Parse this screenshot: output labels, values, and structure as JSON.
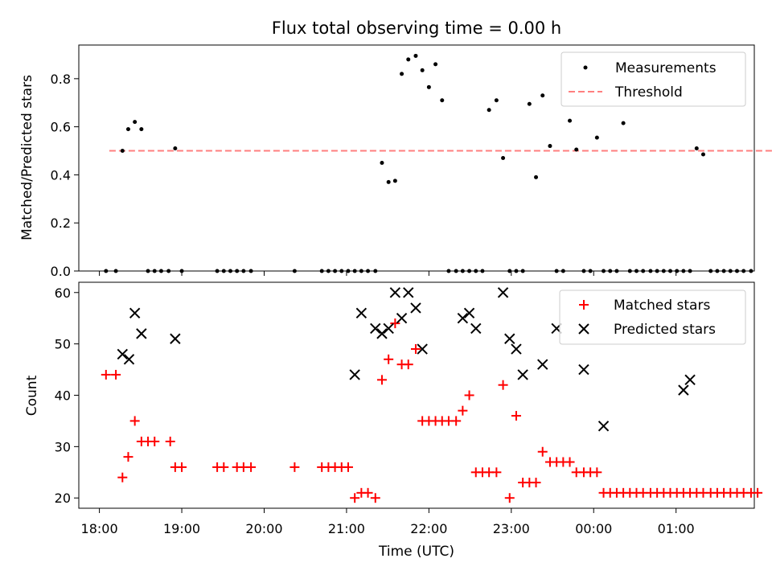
{
  "title": "Flux total observing time = 0.00 h",
  "xlabel": "Time (UTC)",
  "xticks": [
    {
      "t": 18.0,
      "label": "18:00"
    },
    {
      "t": 19.0,
      "label": "19:00"
    },
    {
      "t": 20.0,
      "label": "20:00"
    },
    {
      "t": 21.0,
      "label": "21:00"
    },
    {
      "t": 22.0,
      "label": "22:00"
    },
    {
      "t": 23.0,
      "label": "23:00"
    },
    {
      "t": 24.0,
      "label": "00:00"
    },
    {
      "t": 25.0,
      "label": "01:00"
    }
  ],
  "chart_data": [
    {
      "type": "scatter",
      "ylabel": "Matched/Predicted stars",
      "xlim": [
        "17:45",
        "25:57"
      ],
      "ylim": [
        0,
        0.94
      ],
      "yticks": [
        0.0,
        0.2,
        0.4,
        0.6,
        0.8
      ],
      "legend_position": "top-right",
      "threshold": {
        "name": "Threshold",
        "y": 0.5,
        "x_range": [
          18.12,
          26.52
        ],
        "color": "#ff7f7f"
      },
      "series": [
        {
          "name": "Measurements",
          "color": "#000000",
          "x": [
            18.08,
            18.2,
            18.28,
            18.35,
            18.43,
            18.51,
            18.59,
            18.67,
            18.75,
            18.84,
            18.92,
            19.0,
            19.43,
            19.51,
            19.59,
            19.67,
            19.75,
            19.84,
            20.37,
            20.7,
            20.78,
            20.86,
            20.94,
            21.02,
            21.1,
            21.18,
            21.26,
            21.35,
            21.43,
            21.51,
            21.59,
            21.67,
            21.75,
            21.84,
            21.92,
            22.0,
            22.08,
            22.16,
            22.24,
            22.33,
            22.41,
            22.49,
            22.57,
            22.65,
            22.73,
            22.82,
            22.9,
            22.98,
            23.06,
            23.14,
            23.22,
            23.3,
            23.38,
            23.47,
            23.55,
            23.63,
            23.71,
            23.79,
            23.88,
            23.96,
            24.04,
            24.12,
            24.2,
            24.28,
            24.36,
            24.44,
            24.52,
            24.6,
            24.69,
            24.77,
            24.85,
            24.93,
            25.01,
            25.09,
            25.17,
            25.25,
            25.33,
            25.42,
            25.5,
            25.58,
            25.66,
            25.74,
            25.82,
            25.91
          ],
          "y": [
            0,
            0,
            0.5,
            0.59,
            0.62,
            0.59,
            0,
            0,
            0,
            0,
            0.51,
            0,
            0,
            0,
            0,
            0,
            0,
            0,
            0,
            0,
            0,
            0,
            0,
            0,
            0,
            0,
            0,
            0,
            0.45,
            0.37,
            0.375,
            0.82,
            0.88,
            0.895,
            0.835,
            0.765,
            0.86,
            0.71,
            0,
            0,
            0,
            0,
            0,
            0,
            0.67,
            0.71,
            0.47,
            0,
            0,
            0,
            0.695,
            0.39,
            0.73,
            0.52,
            0,
            0,
            0.625,
            0.505,
            0,
            0,
            0.555,
            0,
            0,
            0,
            0.615,
            0,
            0,
            0,
            0,
            0,
            0,
            0,
            0,
            0,
            0,
            0.51,
            0.485,
            0,
            0,
            0,
            0,
            0,
            0,
            0
          ]
        }
      ]
    },
    {
      "type": "scatter",
      "ylabel": "Count",
      "ylim": [
        18,
        62
      ],
      "yticks": [
        20,
        30,
        40,
        50,
        60
      ],
      "legend_position": "top-right",
      "series": [
        {
          "name": "Matched stars",
          "marker": "plus",
          "color": "#ff0000",
          "x": [
            18.08,
            18.2,
            18.28,
            18.35,
            18.43,
            18.51,
            18.59,
            18.67,
            18.86,
            18.92,
            19.0,
            19.43,
            19.51,
            19.67,
            19.75,
            19.84,
            20.37,
            20.7,
            20.78,
            20.86,
            20.94,
            21.02,
            21.1,
            21.18,
            21.26,
            21.35,
            21.43,
            21.51,
            21.59,
            21.67,
            21.75,
            21.84,
            21.92,
            22.0,
            22.08,
            22.16,
            22.24,
            22.33,
            22.41,
            22.49,
            22.57,
            22.65,
            22.73,
            22.82,
            22.9,
            22.98,
            23.06,
            23.14,
            23.22,
            23.3,
            23.38,
            23.47,
            23.55,
            23.63,
            23.71,
            23.79,
            23.88,
            23.96,
            24.04,
            24.12,
            24.2,
            24.28,
            24.36,
            24.44,
            24.52,
            24.6,
            24.69,
            24.77,
            24.85,
            24.93,
            25.01,
            25.09,
            25.17,
            25.25,
            25.33,
            25.42,
            25.5,
            25.58,
            25.66,
            25.74,
            25.82,
            25.91,
            25.99
          ],
          "y": [
            44,
            44,
            24,
            28,
            35,
            31,
            31,
            31,
            31,
            26,
            26,
            26,
            26,
            26,
            26,
            26,
            26,
            26,
            26,
            26,
            26,
            26,
            20,
            21,
            21,
            20,
            43,
            47,
            54,
            46,
            46,
            49,
            35,
            35,
            35,
            35,
            35,
            35,
            37,
            40,
            25,
            25,
            25,
            25,
            42,
            20,
            36,
            23,
            23,
            23,
            29,
            27,
            27,
            27,
            27,
            25,
            25,
            25,
            25,
            21,
            21,
            21,
            21,
            21,
            21,
            21,
            21,
            21,
            21,
            21,
            21,
            21,
            21,
            21,
            21,
            21,
            21,
            21,
            21,
            21,
            21,
            21,
            21
          ]
        },
        {
          "name": "Predicted stars",
          "marker": "x",
          "color": "#000000",
          "x": [
            18.28,
            18.36,
            18.43,
            18.51,
            18.92,
            21.1,
            21.18,
            21.35,
            21.43,
            21.51,
            21.59,
            21.67,
            21.75,
            21.84,
            21.92,
            22.41,
            22.49,
            22.57,
            22.9,
            22.98,
            23.06,
            23.14,
            23.38,
            23.55,
            23.88,
            24.12,
            25.09,
            25.17
          ],
          "y": [
            48,
            47,
            56,
            52,
            51,
            44,
            56,
            53,
            52,
            53,
            60,
            55,
            60,
            57,
            49,
            55,
            56,
            53,
            60,
            51,
            49,
            44,
            46,
            53,
            45,
            34,
            41,
            43
          ]
        }
      ]
    }
  ]
}
